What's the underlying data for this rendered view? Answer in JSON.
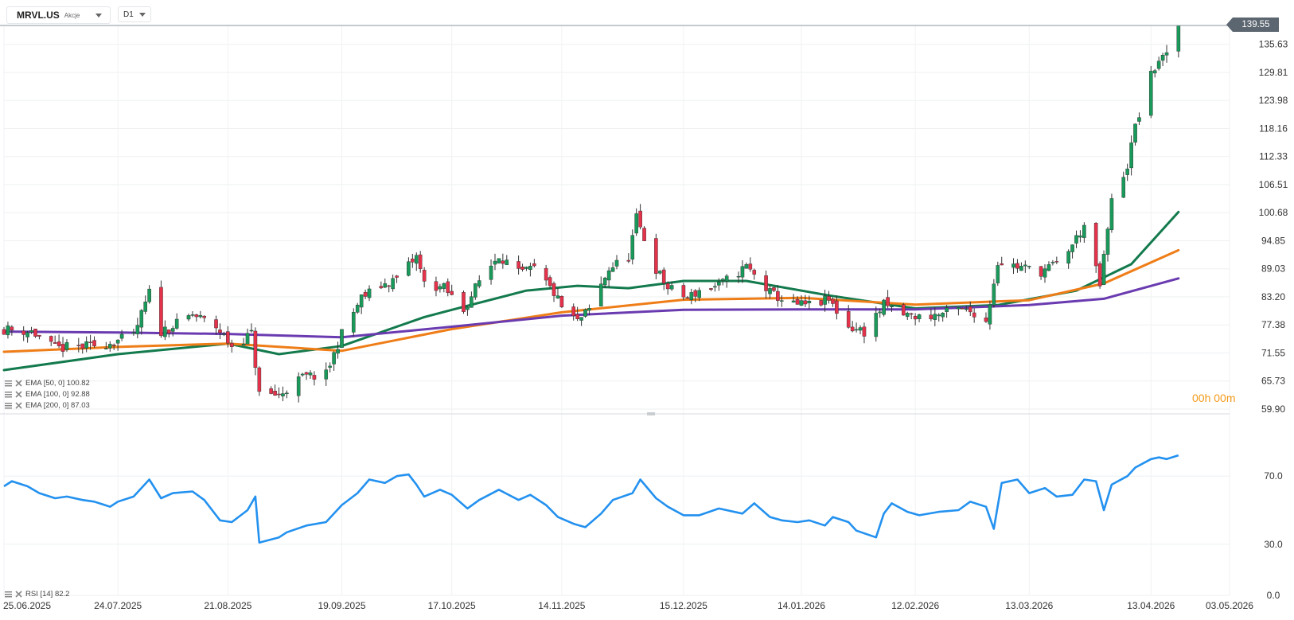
{
  "header": {
    "symbol": "MRVL.US",
    "asset_type": "Akcje",
    "interval": "D1",
    "countdown": "00h 00m"
  },
  "last_price_tag": "139.55",
  "legend": {
    "ema50": "EMA [50, 0] 100.82",
    "ema100": "EMA [100, 0] 92.88",
    "ema200": "EMA [200, 0] 87.03",
    "rsi": "RSI [14] 82.2"
  },
  "colors": {
    "up": "#1a9a5a",
    "down": "#e5324b",
    "ema50": "#137a4d",
    "ema100": "#ef7d17",
    "ema200": "#6a3bb0",
    "rsi": "#2391ef",
    "last_price_bg": "#5c6670"
  },
  "chart_data": [
    {
      "type": "candlestick",
      "price_axis_ticks": [
        "139.55",
        "135.63",
        "129.81",
        "123.98",
        "118.16",
        "112.33",
        "106.51",
        "100.68",
        "94.85",
        "89.03",
        "83.20",
        "77.38",
        "71.55",
        "65.73",
        "59.90"
      ],
      "date_axis_ticks": [
        "25.06.2025",
        "24.07.2025",
        "21.08.2025",
        "19.09.2025",
        "17.10.2025",
        "14.11.2025",
        "15.12.2025",
        "14.01.2026",
        "12.02.2026",
        "13.03.2026",
        "13.04.2026",
        "03.05.2026"
      ],
      "date_range": [
        "2025-06-25",
        "2026-05-03"
      ],
      "ylim": [
        59.9,
        139.55
      ],
      "last_price": 139.55,
      "close_anchors": [
        [
          "2025-06-25",
          76.5
        ],
        [
          "2025-07-02",
          76.0
        ],
        [
          "2025-07-08",
          72.5
        ],
        [
          "2025-07-15",
          72.8
        ],
        [
          "2025-07-21",
          73.5
        ],
        [
          "2025-07-28",
          75.0
        ],
        [
          "2025-08-01",
          84.0
        ],
        [
          "2025-08-04",
          76.0
        ],
        [
          "2025-08-08",
          77.5
        ],
        [
          "2025-08-12",
          79.5
        ],
        [
          "2025-08-18",
          77.0
        ],
        [
          "2025-08-22",
          73.0
        ],
        [
          "2025-08-27",
          75.5
        ],
        [
          "2025-08-29",
          63.0
        ],
        [
          "2025-09-03",
          62.8
        ],
        [
          "2025-09-09",
          66.5
        ],
        [
          "2025-09-15",
          67.0
        ],
        [
          "2025-09-19",
          75.5
        ],
        [
          "2025-09-24",
          83.0
        ],
        [
          "2025-09-29",
          85.5
        ],
        [
          "2025-10-03",
          87.0
        ],
        [
          "2025-10-08",
          91.5
        ],
        [
          "2025-10-10",
          86.0
        ],
        [
          "2025-10-15",
          85.0
        ],
        [
          "2025-10-20",
          80.5
        ],
        [
          "2025-10-24",
          86.5
        ],
        [
          "2025-10-29",
          92.0
        ],
        [
          "2025-11-03",
          88.0
        ],
        [
          "2025-11-07",
          89.0
        ],
        [
          "2025-11-12",
          84.0
        ],
        [
          "2025-11-14",
          81.0
        ],
        [
          "2025-11-18",
          78.0
        ],
        [
          "2025-11-21",
          80.5
        ],
        [
          "2025-11-26",
          89.0
        ],
        [
          "2025-12-01",
          91.5
        ],
        [
          "2025-12-03",
          99.5
        ],
        [
          "2025-12-08",
          89.0
        ],
        [
          "2025-12-11",
          85.0
        ],
        [
          "2025-12-16",
          83.0
        ],
        [
          "2025-12-19",
          84.5
        ],
        [
          "2025-12-24",
          85.5
        ],
        [
          "2025-12-31",
          89.5
        ],
        [
          "2026-01-06",
          84.0
        ],
        [
          "2026-01-12",
          81.5
        ],
        [
          "2026-01-16",
          81.5
        ],
        [
          "2026-01-21",
          82.5
        ],
        [
          "2026-01-26",
          77.0
        ],
        [
          "2026-01-30",
          76.0
        ],
        [
          "2026-02-04",
          81.5
        ],
        [
          "2026-02-09",
          79.5
        ],
        [
          "2026-02-13",
          79.0
        ],
        [
          "2026-02-18",
          79.5
        ],
        [
          "2026-02-23",
          80.5
        ],
        [
          "2026-02-27",
          80.0
        ],
        [
          "2026-03-02",
          78.0
        ],
        [
          "2026-03-05",
          90.5
        ],
        [
          "2026-03-10",
          89.5
        ],
        [
          "2026-03-16",
          88.5
        ],
        [
          "2026-03-20",
          90.0
        ],
        [
          "2026-03-24",
          94.0
        ],
        [
          "2026-03-27",
          98.0
        ],
        [
          "2026-03-31",
          85.5
        ],
        [
          "2026-04-03",
          103.0
        ],
        [
          "2026-04-07",
          110.5
        ],
        [
          "2026-04-09",
          118.5
        ],
        [
          "2026-04-13",
          129.0
        ],
        [
          "2026-04-15",
          132.5
        ],
        [
          "2026-04-17",
          133.0
        ],
        [
          "2026-04-20",
          139.55
        ]
      ],
      "series": [
        {
          "name": "EMA [50, 0] 100.82",
          "points": [
            [
              "2025-06-25",
              68.0
            ],
            [
              "2025-07-24",
              71.3
            ],
            [
              "2025-08-21",
              73.5
            ],
            [
              "2025-09-03",
              71.3
            ],
            [
              "2025-09-19",
              73.0
            ],
            [
              "2025-10-10",
              79.0
            ],
            [
              "2025-10-17",
              80.5
            ],
            [
              "2025-11-05",
              84.5
            ],
            [
              "2025-11-18",
              85.5
            ],
            [
              "2025-12-01",
              85.0
            ],
            [
              "2025-12-15",
              86.5
            ],
            [
              "2025-12-31",
              86.5
            ],
            [
              "2026-01-21",
              83.5
            ],
            [
              "2026-02-12",
              80.8
            ],
            [
              "2026-03-05",
              81.5
            ],
            [
              "2026-03-25",
              84.5
            ],
            [
              "2026-04-08",
              90.0
            ],
            [
              "2026-04-20",
              100.82
            ]
          ]
        },
        {
          "name": "EMA [100, 0] 92.88",
          "points": [
            [
              "2025-06-25",
              71.8
            ],
            [
              "2025-07-24",
              72.8
            ],
            [
              "2025-08-21",
              73.5
            ],
            [
              "2025-09-19",
              72.0
            ],
            [
              "2025-10-17",
              76.5
            ],
            [
              "2025-11-14",
              80.0
            ],
            [
              "2025-12-15",
              82.6
            ],
            [
              "2026-01-14",
              83.0
            ],
            [
              "2026-02-12",
              81.6
            ],
            [
              "2026-03-13",
              82.5
            ],
            [
              "2026-04-01",
              86.0
            ],
            [
              "2026-04-20",
              92.88
            ]
          ]
        },
        {
          "name": "EMA [200, 0] 87.03",
          "points": [
            [
              "2025-06-25",
              76.0
            ],
            [
              "2025-07-24",
              75.8
            ],
            [
              "2025-08-21",
              75.5
            ],
            [
              "2025-09-19",
              74.8
            ],
            [
              "2025-10-17",
              77.0
            ],
            [
              "2025-11-14",
              79.3
            ],
            [
              "2025-12-15",
              80.5
            ],
            [
              "2026-01-14",
              80.6
            ],
            [
              "2026-02-12",
              80.6
            ],
            [
              "2026-03-13",
              81.5
            ],
            [
              "2026-04-01",
              82.8
            ],
            [
              "2026-04-20",
              87.03
            ]
          ]
        }
      ]
    },
    {
      "type": "line",
      "name": "RSI [14] 82.2",
      "y_ticks": [
        "70.0",
        "30.0",
        "0.0"
      ],
      "ylim": [
        0,
        100
      ],
      "points": [
        [
          "2025-06-25",
          64
        ],
        [
          "2025-06-27",
          67
        ],
        [
          "2025-07-01",
          64
        ],
        [
          "2025-07-04",
          60
        ],
        [
          "2025-07-08",
          57
        ],
        [
          "2025-07-11",
          58
        ],
        [
          "2025-07-15",
          56
        ],
        [
          "2025-07-18",
          55
        ],
        [
          "2025-07-22",
          52
        ],
        [
          "2025-07-24",
          55
        ],
        [
          "2025-07-28",
          58
        ],
        [
          "2025-08-01",
          68
        ],
        [
          "2025-08-04",
          57
        ],
        [
          "2025-08-07",
          60
        ],
        [
          "2025-08-12",
          61
        ],
        [
          "2025-08-15",
          56
        ],
        [
          "2025-08-19",
          44
        ],
        [
          "2025-08-22",
          43
        ],
        [
          "2025-08-26",
          50
        ],
        [
          "2025-08-28",
          58
        ],
        [
          "2025-08-29",
          31
        ],
        [
          "2025-09-03",
          34
        ],
        [
          "2025-09-05",
          37
        ],
        [
          "2025-09-10",
          41
        ],
        [
          "2025-09-15",
          43
        ],
        [
          "2025-09-19",
          53
        ],
        [
          "2025-09-23",
          60
        ],
        [
          "2025-09-26",
          68
        ],
        [
          "2025-09-30",
          66
        ],
        [
          "2025-10-03",
          70
        ],
        [
          "2025-10-06",
          71
        ],
        [
          "2025-10-08",
          65
        ],
        [
          "2025-10-10",
          58
        ],
        [
          "2025-10-14",
          62
        ],
        [
          "2025-10-17",
          59
        ],
        [
          "2025-10-21",
          51
        ],
        [
          "2025-10-24",
          56
        ],
        [
          "2025-10-29",
          62
        ],
        [
          "2025-11-03",
          56
        ],
        [
          "2025-11-06",
          59
        ],
        [
          "2025-11-10",
          53
        ],
        [
          "2025-11-13",
          46
        ],
        [
          "2025-11-17",
          42
        ],
        [
          "2025-11-20",
          40
        ],
        [
          "2025-11-24",
          48
        ],
        [
          "2025-11-27",
          56
        ],
        [
          "2025-12-02",
          60
        ],
        [
          "2025-12-04",
          68
        ],
        [
          "2025-12-08",
          57
        ],
        [
          "2025-12-11",
          52
        ],
        [
          "2025-12-15",
          47
        ],
        [
          "2025-12-19",
          47
        ],
        [
          "2025-12-24",
          51
        ],
        [
          "2025-12-30",
          48
        ],
        [
          "2026-01-02",
          54
        ],
        [
          "2026-01-06",
          46
        ],
        [
          "2026-01-09",
          44
        ],
        [
          "2026-01-13",
          43
        ],
        [
          "2026-01-16",
          44
        ],
        [
          "2026-01-20",
          41
        ],
        [
          "2026-01-22",
          46
        ],
        [
          "2026-01-26",
          43
        ],
        [
          "2026-01-28",
          38
        ],
        [
          "2026-02-02",
          34
        ],
        [
          "2026-02-04",
          48
        ],
        [
          "2026-02-06",
          54
        ],
        [
          "2026-02-10",
          49
        ],
        [
          "2026-02-13",
          47
        ],
        [
          "2026-02-18",
          49
        ],
        [
          "2026-02-23",
          50
        ],
        [
          "2026-02-26",
          55
        ],
        [
          "2026-03-02",
          52
        ],
        [
          "2026-03-04",
          39
        ],
        [
          "2026-03-06",
          66
        ],
        [
          "2026-03-10",
          68
        ],
        [
          "2026-03-13",
          60
        ],
        [
          "2026-03-17",
          63
        ],
        [
          "2026-03-20",
          58
        ],
        [
          "2026-03-24",
          59
        ],
        [
          "2026-03-27",
          68
        ],
        [
          "2026-03-30",
          67
        ],
        [
          "2026-04-01",
          50
        ],
        [
          "2026-04-03",
          65
        ],
        [
          "2026-04-07",
          70
        ],
        [
          "2026-04-09",
          75
        ],
        [
          "2026-04-13",
          80
        ],
        [
          "2026-04-15",
          81
        ],
        [
          "2026-04-17",
          80
        ],
        [
          "2026-04-20",
          82.2
        ]
      ]
    }
  ]
}
